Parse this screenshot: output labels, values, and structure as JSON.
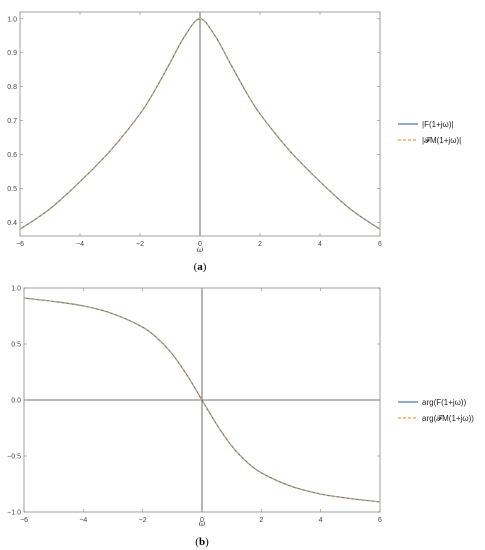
{
  "chart_data": [
    {
      "type": "line",
      "caption": "(a)",
      "xlabel": "ω",
      "ylabel": "",
      "xlim": [
        -6,
        6
      ],
      "ylim": [
        0.36,
        1.02
      ],
      "xticks": [
        "-6",
        "-4",
        "-2",
        "0",
        "2",
        "4",
        "6"
      ],
      "yticks": [
        "0.4",
        "0.5",
        "0.6",
        "0.7",
        "0.8",
        "0.9",
        "1.0"
      ],
      "grid": false,
      "legend_position": "right",
      "series": [
        {
          "name": "|F(1+jω)|",
          "style": "solid",
          "color": "#4a79b5",
          "x": [
            -6,
            -5,
            -4,
            -3,
            -2,
            -1.5,
            -1,
            -0.5,
            0,
            0.5,
            1,
            1.5,
            2,
            3,
            4,
            5,
            6
          ],
          "values": [
            0.38,
            0.44,
            0.52,
            0.61,
            0.72,
            0.79,
            0.87,
            0.95,
            1.0,
            0.95,
            0.87,
            0.79,
            0.72,
            0.61,
            0.52,
            0.44,
            0.38
          ]
        },
        {
          "name": "|𝓕M(1+jω)|",
          "style": "dashed",
          "color": "#e8a13a",
          "x": [
            -6,
            -5,
            -4,
            -3,
            -2,
            -1.5,
            -1,
            -0.5,
            0,
            0.5,
            1,
            1.5,
            2,
            3,
            4,
            5,
            6
          ],
          "values": [
            0.38,
            0.44,
            0.52,
            0.61,
            0.72,
            0.79,
            0.87,
            0.95,
            1.0,
            0.95,
            0.87,
            0.79,
            0.72,
            0.61,
            0.52,
            0.44,
            0.38
          ]
        }
      ]
    },
    {
      "type": "line",
      "caption": "(b)",
      "xlabel": "ω",
      "ylabel": "",
      "xlim": [
        -6,
        6
      ],
      "ylim": [
        -1.0,
        1.0
      ],
      "xticks": [
        "-6",
        "-4",
        "-2",
        "0",
        "2",
        "4",
        "6"
      ],
      "yticks": [
        "-1.0",
        "-0.5",
        "0.0",
        "0.5",
        "1.0"
      ],
      "grid": false,
      "legend_position": "right",
      "series": [
        {
          "name": "arg(F(1+jω))",
          "style": "solid",
          "color": "#4a79b5",
          "x": [
            -6,
            -5,
            -4,
            -3,
            -2,
            -1.5,
            -1,
            -0.5,
            0,
            0.5,
            1,
            1.5,
            2,
            3,
            4,
            5,
            6
          ],
          "values": [
            0.91,
            0.88,
            0.84,
            0.77,
            0.65,
            0.55,
            0.41,
            0.22,
            0.0,
            -0.22,
            -0.41,
            -0.55,
            -0.65,
            -0.77,
            -0.84,
            -0.88,
            -0.91
          ]
        },
        {
          "name": "arg(𝓕M(1+jω))",
          "style": "dashed",
          "color": "#e8a13a",
          "x": [
            -6,
            -5,
            -4,
            -3,
            -2,
            -1.5,
            -1,
            -0.5,
            0,
            0.5,
            1,
            1.5,
            2,
            3,
            4,
            5,
            6
          ],
          "values": [
            0.91,
            0.88,
            0.84,
            0.77,
            0.65,
            0.55,
            0.41,
            0.22,
            0.0,
            -0.22,
            -0.41,
            -0.55,
            -0.65,
            -0.77,
            -0.84,
            -0.88,
            -0.91
          ]
        }
      ]
    }
  ]
}
